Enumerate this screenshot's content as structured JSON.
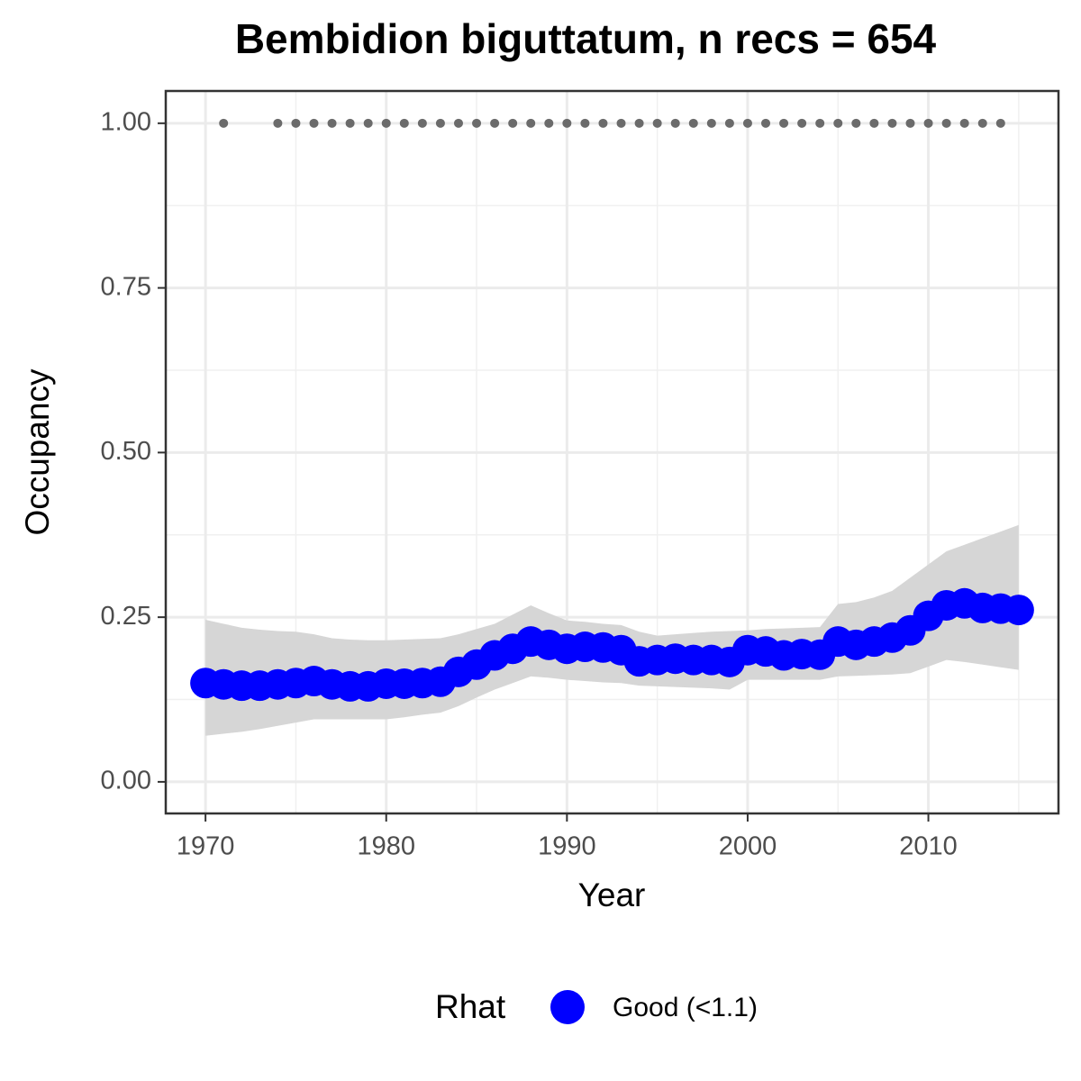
{
  "chart_data": {
    "type": "line",
    "title": "Bembidion biguttatum, n recs = 654",
    "x_label": "Year",
    "y_label": "Occupancy",
    "legend_title": "Rhat",
    "legend": "bottom",
    "grid": true,
    "x": [
      1970,
      1971,
      1972,
      1973,
      1974,
      1975,
      1976,
      1977,
      1978,
      1979,
      1980,
      1981,
      1982,
      1983,
      1984,
      1985,
      1986,
      1987,
      1988,
      1989,
      1990,
      1991,
      1992,
      1993,
      1994,
      1995,
      1996,
      1997,
      1998,
      1999,
      2000,
      2001,
      2002,
      2003,
      2004,
      2005,
      2006,
      2007,
      2008,
      2009,
      2010,
      2011,
      2012,
      2013,
      2014,
      2015
    ],
    "series": [
      {
        "name": "Good (<1.1)",
        "color": "#0000ff",
        "band_color": "#d6d6d6",
        "values": [
          0.15,
          0.148,
          0.146,
          0.146,
          0.148,
          0.15,
          0.153,
          0.148,
          0.145,
          0.145,
          0.149,
          0.149,
          0.15,
          0.152,
          0.167,
          0.178,
          0.192,
          0.202,
          0.213,
          0.208,
          0.202,
          0.205,
          0.204,
          0.2,
          0.183,
          0.185,
          0.187,
          0.185,
          0.185,
          0.182,
          0.2,
          0.198,
          0.192,
          0.194,
          0.193,
          0.213,
          0.208,
          0.213,
          0.219,
          0.23,
          0.252,
          0.268,
          0.271,
          0.264,
          0.263,
          0.261
        ],
        "lower": [
          0.07,
          0.073,
          0.076,
          0.08,
          0.085,
          0.09,
          0.095,
          0.095,
          0.095,
          0.095,
          0.095,
          0.098,
          0.102,
          0.105,
          0.115,
          0.128,
          0.14,
          0.15,
          0.16,
          0.158,
          0.155,
          0.153,
          0.151,
          0.15,
          0.146,
          0.145,
          0.144,
          0.143,
          0.142,
          0.14,
          0.155,
          0.155,
          0.155,
          0.155,
          0.155,
          0.16,
          0.161,
          0.162,
          0.163,
          0.165,
          0.175,
          0.185,
          0.182,
          0.178,
          0.174,
          0.17
        ],
        "upper": [
          0.246,
          0.24,
          0.234,
          0.231,
          0.229,
          0.228,
          0.224,
          0.218,
          0.216,
          0.215,
          0.215,
          0.216,
          0.217,
          0.218,
          0.224,
          0.232,
          0.24,
          0.254,
          0.268,
          0.256,
          0.245,
          0.243,
          0.24,
          0.238,
          0.228,
          0.222,
          0.224,
          0.226,
          0.228,
          0.229,
          0.23,
          0.232,
          0.233,
          0.234,
          0.235,
          0.27,
          0.273,
          0.28,
          0.29,
          0.31,
          0.33,
          0.35,
          0.36,
          0.37,
          0.38,
          0.39
        ]
      }
    ],
    "records": {
      "color": "#6b6b6b",
      "x": [
        1971,
        1974,
        1975,
        1976,
        1977,
        1978,
        1979,
        1980,
        1981,
        1982,
        1983,
        1984,
        1985,
        1986,
        1987,
        1988,
        1989,
        1990,
        1991,
        1992,
        1993,
        1994,
        1995,
        1996,
        1997,
        1998,
        1999,
        2000,
        2001,
        2002,
        2003,
        2004,
        2005,
        2006,
        2007,
        2008,
        2009,
        2010,
        2011,
        2012,
        2013,
        2014
      ],
      "values": [
        1,
        1,
        1,
        1,
        1,
        1,
        1,
        1,
        1,
        1,
        1,
        1,
        1,
        1,
        1,
        1,
        1,
        1,
        1,
        1,
        1,
        1,
        1,
        1,
        1,
        1,
        1,
        1,
        1,
        1,
        1,
        1,
        1,
        1,
        1,
        1,
        1,
        1,
        1,
        1,
        1,
        1
      ]
    },
    "xlim": [
      1967.8,
      2017.2
    ],
    "ylim": [
      -0.048,
      1.049
    ],
    "xticks": [
      1970,
      1980,
      1990,
      2000,
      2010
    ],
    "minor_xticks": [
      1975,
      1985,
      1995,
      2005,
      2015
    ],
    "yticks": [
      {
        "value": 0,
        "label": "0.00"
      },
      {
        "value": 0.25,
        "label": "0.25"
      },
      {
        "value": 0.5,
        "label": "0.50"
      },
      {
        "value": 0.75,
        "label": "0.75"
      },
      {
        "value": 1,
        "label": "1.00"
      }
    ],
    "minor_yticks": [
      0.125,
      0.375,
      0.625,
      0.875
    ]
  }
}
